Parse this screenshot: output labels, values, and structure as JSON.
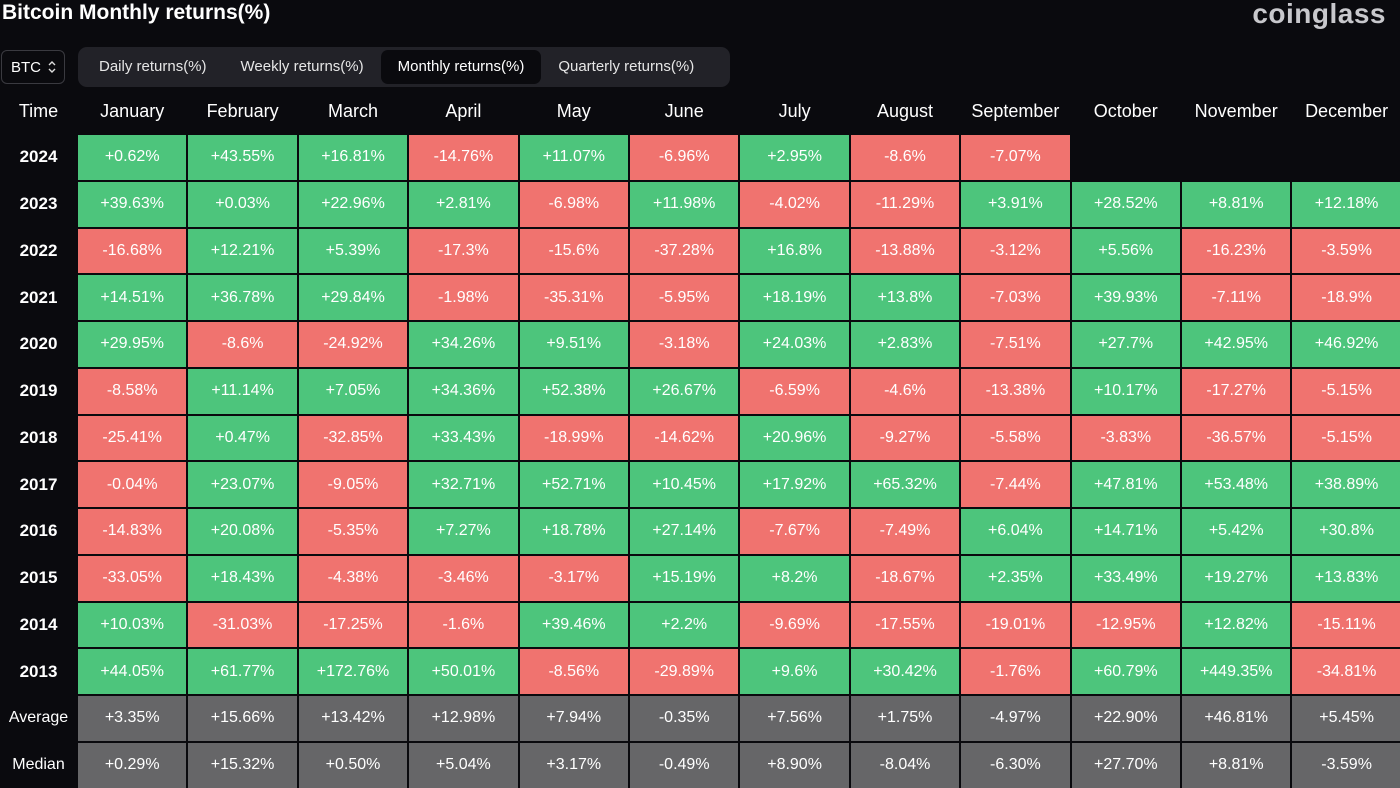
{
  "header": {
    "title": "Bitcoin Monthly returns(%)",
    "logo": "coinglass"
  },
  "selector": "BTC",
  "tabs": [
    {
      "label": "Daily returns(%)",
      "active": false
    },
    {
      "label": "Weekly returns(%)",
      "active": false
    },
    {
      "label": "Monthly returns(%)",
      "active": true
    },
    {
      "label": "Quarterly returns(%)",
      "active": false
    }
  ],
  "table": {
    "columns": [
      "Time",
      "January",
      "February",
      "March",
      "April",
      "May",
      "June",
      "July",
      "August",
      "September",
      "October",
      "November",
      "December"
    ],
    "rows": [
      [
        "2024",
        "+0.62%",
        "+43.55%",
        "+16.81%",
        "-14.76%",
        "+11.07%",
        "-6.96%",
        "+2.95%",
        "-8.6%",
        "-7.07%"
      ],
      [
        "2023",
        "+39.63%",
        "+0.03%",
        "+22.96%",
        "+2.81%",
        "-6.98%",
        "+11.98%",
        "-4.02%",
        "-11.29%",
        "+3.91%",
        "+28.52%",
        "+8.81%",
        "+12.18%"
      ],
      [
        "2022",
        "-16.68%",
        "+12.21%",
        "+5.39%",
        "-17.3%",
        "-15.6%",
        "-37.28%",
        "+16.8%",
        "-13.88%",
        "-3.12%",
        "+5.56%",
        "-16.23%",
        "-3.59%"
      ],
      [
        "2021",
        "+14.51%",
        "+36.78%",
        "+29.84%",
        "-1.98%",
        "-35.31%",
        "-5.95%",
        "+18.19%",
        "+13.8%",
        "-7.03%",
        "+39.93%",
        "-7.11%",
        "-18.9%"
      ],
      [
        "2020",
        "+29.95%",
        "-8.6%",
        "-24.92%",
        "+34.26%",
        "+9.51%",
        "-3.18%",
        "+24.03%",
        "+2.83%",
        "-7.51%",
        "+27.7%",
        "+42.95%",
        "+46.92%"
      ],
      [
        "2019",
        "-8.58%",
        "+11.14%",
        "+7.05%",
        "+34.36%",
        "+52.38%",
        "+26.67%",
        "-6.59%",
        "-4.6%",
        "-13.38%",
        "+10.17%",
        "-17.27%",
        "-5.15%"
      ],
      [
        "2018",
        "-25.41%",
        "+0.47%",
        "-32.85%",
        "+33.43%",
        "-18.99%",
        "-14.62%",
        "+20.96%",
        "-9.27%",
        "-5.58%",
        "-3.83%",
        "-36.57%",
        "-5.15%"
      ],
      [
        "2017",
        "-0.04%",
        "+23.07%",
        "-9.05%",
        "+32.71%",
        "+52.71%",
        "+10.45%",
        "+17.92%",
        "+65.32%",
        "-7.44%",
        "+47.81%",
        "+53.48%",
        "+38.89%"
      ],
      [
        "2016",
        "-14.83%",
        "+20.08%",
        "-5.35%",
        "+7.27%",
        "+18.78%",
        "+27.14%",
        "-7.67%",
        "-7.49%",
        "+6.04%",
        "+14.71%",
        "+5.42%",
        "+30.8%"
      ],
      [
        "2015",
        "-33.05%",
        "+18.43%",
        "-4.38%",
        "-3.46%",
        "-3.17%",
        "+15.19%",
        "+8.2%",
        "-18.67%",
        "+2.35%",
        "+33.49%",
        "+19.27%",
        "+13.83%"
      ],
      [
        "2014",
        "+10.03%",
        "-31.03%",
        "-17.25%",
        "-1.6%",
        "+39.46%",
        "+2.2%",
        "-9.69%",
        "-17.55%",
        "-19.01%",
        "-12.95%",
        "+12.82%",
        "-15.11%"
      ],
      [
        "2013",
        "+44.05%",
        "+61.77%",
        "+172.76%",
        "+50.01%",
        "-8.56%",
        "-29.89%",
        "+9.6%",
        "+30.42%",
        "-1.76%",
        "+60.79%",
        "+449.35%",
        "-34.81%"
      ]
    ],
    "summary_rows": [
      [
        "Average",
        "+3.35%",
        "+15.66%",
        "+13.42%",
        "+12.98%",
        "+7.94%",
        "-0.35%",
        "+7.56%",
        "+1.75%",
        "-4.97%",
        "+22.90%",
        "+46.81%",
        "+5.45%"
      ],
      [
        "Median",
        "+0.29%",
        "+15.32%",
        "+0.50%",
        "+5.04%",
        "+3.17%",
        "-0.49%",
        "+8.90%",
        "-8.04%",
        "-6.30%",
        "+27.70%",
        "+8.81%",
        "-3.59%"
      ]
    ]
  }
}
